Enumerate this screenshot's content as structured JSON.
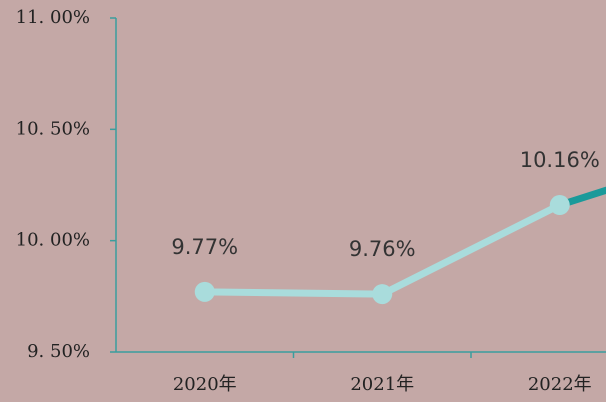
{
  "chart_data": {
    "type": "line",
    "categories": [
      "2020年",
      "2021年",
      "2022年"
    ],
    "values": [
      9.77,
      9.76,
      10.16
    ],
    "value_labels": [
      "9.77%",
      "9.76%",
      "10.16%"
    ],
    "color": "#a9dcdc",
    "ylim": [
      9.5,
      11.0
    ],
    "yticks": [
      {
        "value": 9.5,
        "label": "9. 50%"
      },
      {
        "value": 10.0,
        "label": "10. 00%"
      },
      {
        "value": 10.5,
        "label": "10. 50%"
      },
      {
        "value": 11.0,
        "label": "11. 00%"
      }
    ]
  }
}
